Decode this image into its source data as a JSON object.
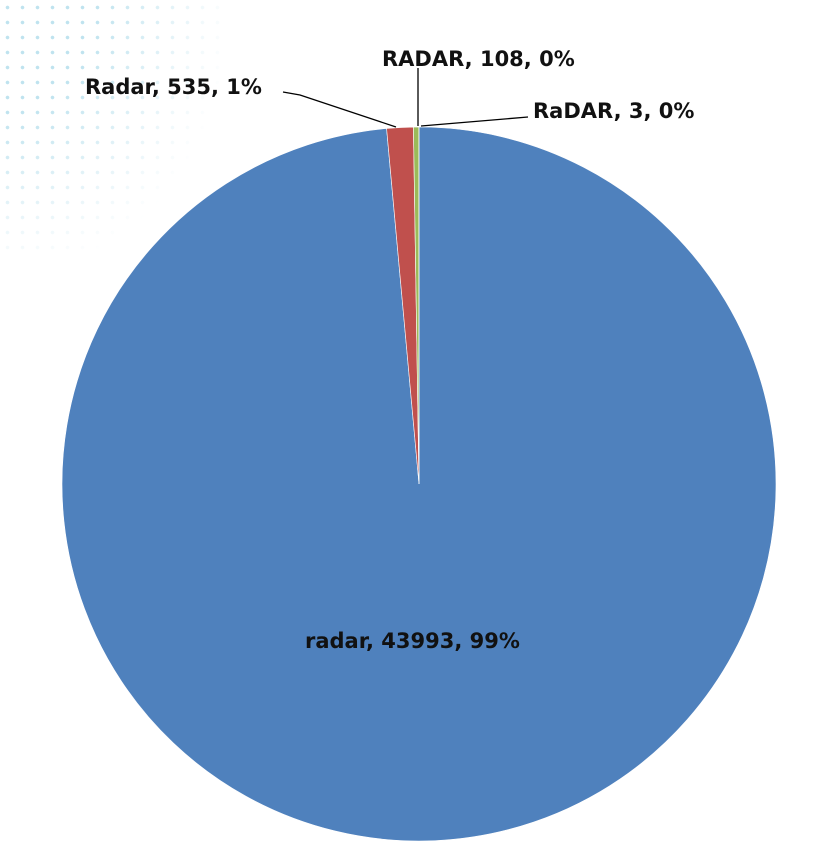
{
  "chart_data": {
    "type": "pie",
    "start_angle": "12 o'clock, clockwise",
    "slices": [
      {
        "label": "radar",
        "value": 43993,
        "percent": "99%",
        "color": "#4F81BD",
        "data_label": "radar,  43993, 99%"
      },
      {
        "label": "Radar",
        "value": 535,
        "percent": "1%",
        "color": "#C0504D",
        "data_label": "Radar,  535, 1%"
      },
      {
        "label": "RADAR",
        "value": 108,
        "percent": "0%",
        "color": "#9BBB59",
        "data_label": "RADAR, 108, 0%"
      },
      {
        "label": "RaDAR",
        "value": 3,
        "percent": "0%",
        "color": "#8064A2",
        "data_label": "RaDAR, 3, 0%"
      }
    ],
    "legend": "none"
  }
}
